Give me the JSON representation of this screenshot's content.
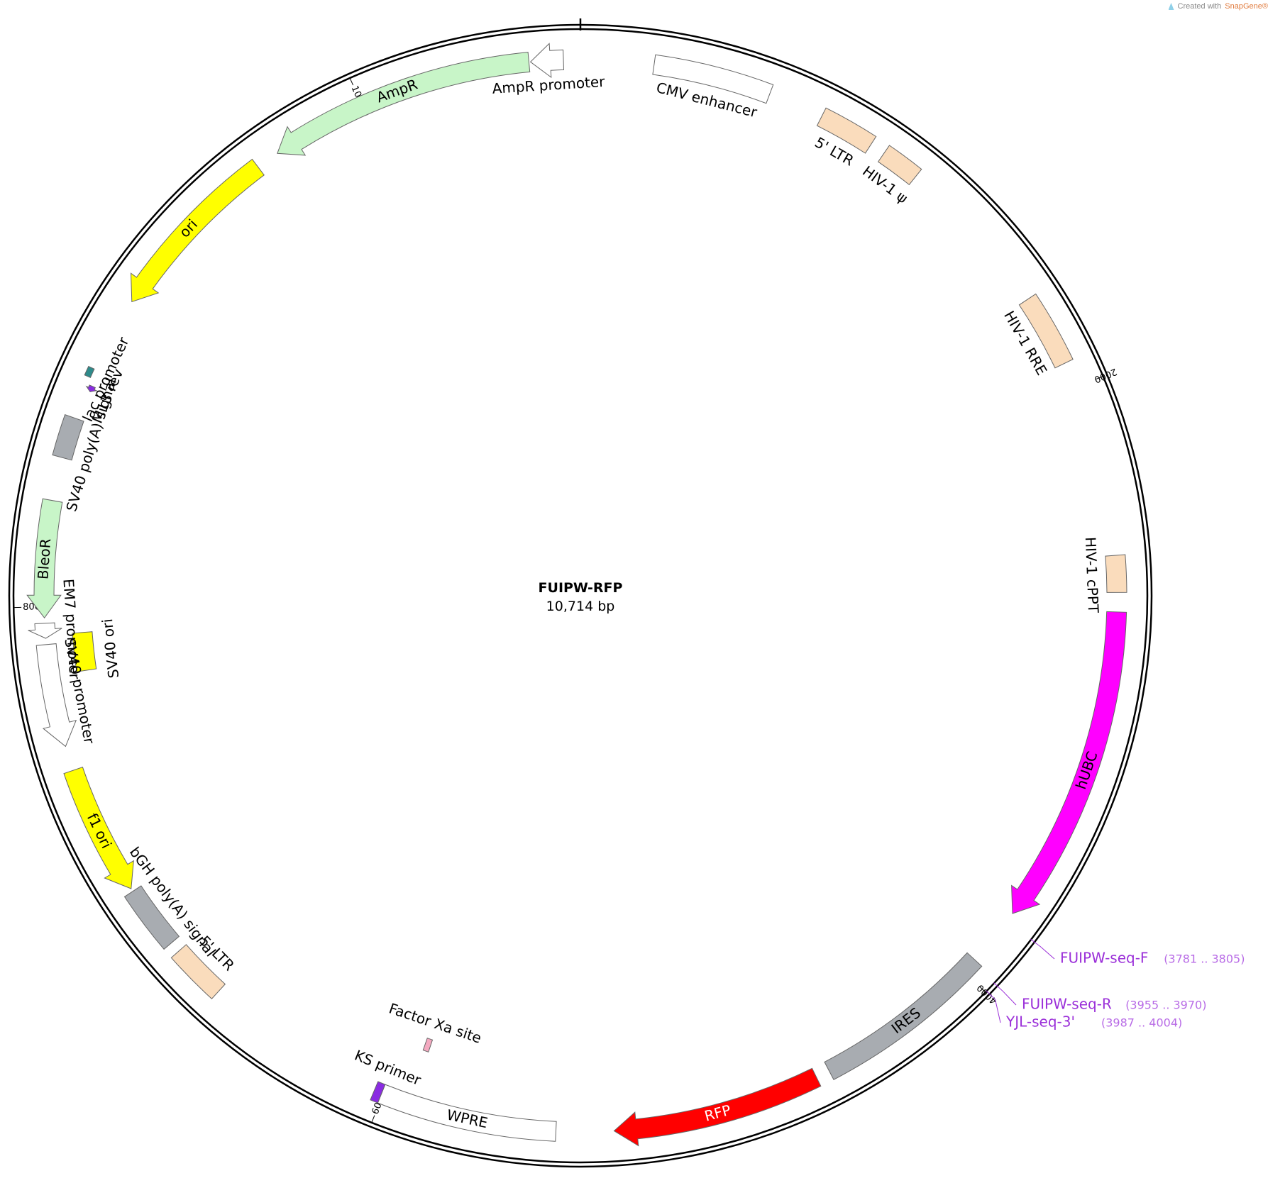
{
  "credit": {
    "prefix": "Created with",
    "brand": "SnapGene®"
  },
  "plasmid": {
    "name": "FUIPW-RFP",
    "length_label": "10,714 bp",
    "length": 10714
  },
  "ticks": [
    {
      "label": "2000",
      "bp": 2000
    },
    {
      "label": "4000",
      "bp": 4000
    },
    {
      "label": "6000",
      "bp": 6000
    },
    {
      "label": "8000",
      "bp": 8000
    },
    {
      "label": "10,000",
      "bp": 10000
    }
  ],
  "features": [
    {
      "label": "CMV enhancer",
      "start": 235,
      "end": 615,
      "color": "#ffffff",
      "arrow": "none"
    },
    {
      "label": "5' LTR",
      "start": 795,
      "end": 975,
      "color": "#fadcbc",
      "arrow": "none"
    },
    {
      "label": "HIV-1 ψ",
      "start": 1025,
      "end": 1150,
      "color": "#fadcbc",
      "arrow": "none"
    },
    {
      "label": "HIV-1 RRE",
      "start": 1680,
      "end": 1915,
      "color": "#fadcbc",
      "arrow": "none"
    },
    {
      "label": "HIV-1 cPPT",
      "start": 2550,
      "end": 2668,
      "color": "#fadcbc",
      "arrow": "none"
    },
    {
      "label": "hUBC",
      "start": 2730,
      "end": 3760,
      "color": "#ff00ff",
      "arrow": "cw"
    },
    {
      "label": "IRES",
      "start": 3950,
      "end": 4535,
      "color": "#a8acb1",
      "arrow": "none"
    },
    {
      "label": "RFP",
      "start": 4580,
      "end": 5250,
      "color": "#ff0000",
      "arrow": "cw"
    },
    {
      "label": "WPRE",
      "start": 5435,
      "end": 6005,
      "color": "#ffffff",
      "arrow": "none"
    },
    {
      "label": "KS primer",
      "start": 6005,
      "end": 6030,
      "color": "#8a2be2",
      "arrow": "none"
    },
    {
      "label": "Factor Xa site",
      "start": 5905,
      "end": 5925,
      "color": "#f4a9c0",
      "arrow": "none"
    },
    {
      "label": "5' LTR",
      "start": 6620,
      "end": 6800,
      "color": "#fadcbc",
      "arrow": "none"
    },
    {
      "label": "bGH poly(A) signal",
      "start": 6835,
      "end": 7040,
      "color": "#a8acb1",
      "arrow": "none"
    },
    {
      "label": "f1 ori",
      "start": 7050,
      "end": 7470,
      "color": "#ffff00",
      "arrow": "ccw"
    },
    {
      "label": "SV40 promoter",
      "start": 7550,
      "end": 7880,
      "color": "#ffffff",
      "arrow": "ccw"
    },
    {
      "label": "EM7 promoter",
      "start": 7900,
      "end": 7948,
      "color": "#ffffff",
      "arrow": "ccw"
    },
    {
      "label": "BleoR",
      "start": 7965,
      "end": 8340,
      "color": "#c8f5c8",
      "arrow": "ccw"
    },
    {
      "label": "SV40 poly(A) signal",
      "start": 8480,
      "end": 8612,
      "color": "#a8acb1",
      "arrow": "none"
    },
    {
      "label": "M13 rev",
      "start": 8708,
      "end": 8727,
      "color": "#8a2be2",
      "arrow": "ccw"
    },
    {
      "label": "lac promoter",
      "start": 8750,
      "end": 8780,
      "color": "#2e8b8b",
      "arrow": "none"
    },
    {
      "label": "ori",
      "start": 9025,
      "end": 9615,
      "color": "#ffff00",
      "arrow": "ccw"
    },
    {
      "label": "AmpR",
      "start": 9690,
      "end": 10550,
      "color": "#c8f5c8",
      "arrow": "ccw"
    },
    {
      "label": "AmpR promoter",
      "start": 10555,
      "end": 10660,
      "color": "#ffffff",
      "arrow": "ccw"
    }
  ],
  "inner_features": [
    {
      "label": "SV40 ori",
      "start": 7780,
      "end": 7910,
      "color": "#ffff00"
    }
  ],
  "primers": [
    {
      "name": "FUIPW-seq-F",
      "range": "(3781 .. 3805)",
      "bp": 3790
    },
    {
      "name": "FUIPW-seq-R",
      "range": "(3955 .. 3970)",
      "bp": 3962
    },
    {
      "name": "YJL-seq-3'",
      "range": "(3987 .. 4004)",
      "bp": 3995
    }
  ],
  "colors": {
    "backbone": "#000000",
    "primer": "#9b30d9",
    "primer_range": "#b86be6",
    "feature_stroke": "#666666"
  }
}
